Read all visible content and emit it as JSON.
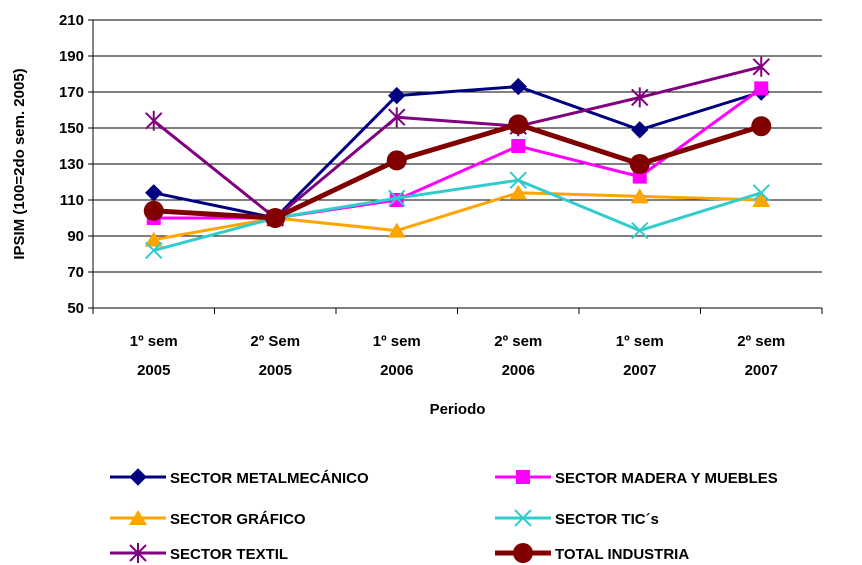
{
  "chart_data": {
    "type": "line",
    "title": "",
    "xlabel": "Periodo",
    "ylabel": "IPSIM (100=2do sem. 2005)",
    "ylim": [
      50,
      210
    ],
    "yticks": [
      50,
      70,
      90,
      110,
      130,
      150,
      170,
      190,
      210
    ],
    "grid": true,
    "legend_position": "bottom",
    "categories": [
      [
        "1º sem",
        "2005"
      ],
      [
        "2º Sem",
        "2005"
      ],
      [
        "1º sem",
        "2006"
      ],
      [
        "2º sem",
        "2006"
      ],
      [
        "1º sem",
        "2007"
      ],
      [
        "2º sem",
        "2007"
      ]
    ],
    "series": [
      {
        "name": "SECTOR METALMECÁNICO",
        "color": "#000080",
        "marker": "diamond",
        "values": [
          114,
          100,
          168,
          173,
          149,
          170
        ]
      },
      {
        "name": "SECTOR MADERA Y MUEBLES",
        "color": "#FF00FF",
        "marker": "square",
        "values": [
          100,
          100,
          110,
          140,
          123,
          172
        ]
      },
      {
        "name": "SECTOR GRÁFICO",
        "color": "#FFA500",
        "marker": "triangle",
        "values": [
          88,
          100,
          93,
          114,
          112,
          110
        ]
      },
      {
        "name": "SECTOR TIC´s",
        "color": "#33CCCC",
        "marker": "x",
        "values": [
          82,
          100,
          111,
          121,
          93,
          114
        ]
      },
      {
        "name": "SECTOR TEXTIL",
        "color": "#800080",
        "marker": "star",
        "values": [
          154,
          100,
          156,
          151,
          167,
          184
        ]
      },
      {
        "name": "TOTAL INDUSTRIA",
        "color": "#800000",
        "marker": "circle",
        "values": [
          104,
          100,
          132,
          152,
          130,
          151
        ]
      }
    ]
  }
}
